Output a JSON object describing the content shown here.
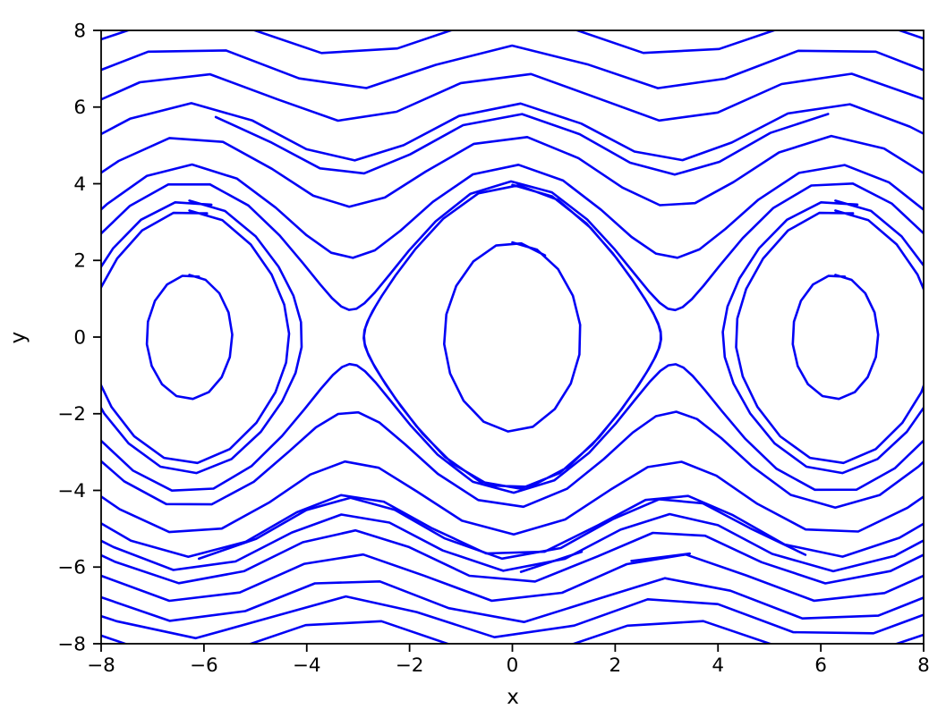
{
  "figure": {
    "xlabel": "x",
    "ylabel": "y",
    "background": "#ffffff"
  },
  "chart_data": {
    "type": "line",
    "subtype": "phase_portrait_pendulum_trajectories",
    "title": "",
    "xlabel": "x",
    "ylabel": "y",
    "xlim": [
      -8,
      8
    ],
    "ylim": [
      -8,
      8
    ],
    "x_ticks": [
      -8,
      -6,
      -4,
      -2,
      0,
      2,
      4,
      6,
      8
    ],
    "y_ticks": [
      -8,
      -6,
      -4,
      -2,
      0,
      2,
      4,
      6,
      8
    ],
    "x_tick_labels": [
      "−8",
      "−6",
      "−4",
      "−2",
      "0",
      "2",
      "4",
      "6",
      "8"
    ],
    "y_tick_labels": [
      "−8",
      "−6",
      "−4",
      "−2",
      "0",
      "2",
      "4",
      "6",
      "8"
    ],
    "grid": false,
    "legend": null,
    "line_color": "#0202f5",
    "axis_color": "#000000",
    "tick_color": "#000000",
    "line_width": 2.6,
    "system": {
      "dxdt": "y",
      "dydt": "-k*sin(x)",
      "k": 4,
      "integrator": "rk4",
      "dt": 0.2
    },
    "trajectories": [
      {
        "x0": 0.0,
        "y0": 2.47,
        "steps": 19
      },
      {
        "x0": -6.283,
        "y0": 1.62,
        "steps": 17
      },
      {
        "x0": 6.283,
        "y0": 1.62,
        "steps": 17
      },
      {
        "x0": -6.283,
        "y0": 3.3,
        "steps": 21
      },
      {
        "x0": -6.283,
        "y0": 3.56,
        "steps": 23
      },
      {
        "x0": 6.283,
        "y0": 3.3,
        "steps": 21
      },
      {
        "x0": 6.283,
        "y0": 3.56,
        "steps": 23
      },
      {
        "x0": 0.0,
        "y0": 3.97,
        "steps": 64
      },
      {
        "x0": -8.5,
        "y0": 1.92,
        "steps": 60
      },
      {
        "x0": -8.5,
        "y0": 2.73,
        "steps": 32
      },
      {
        "x0": -8.5,
        "y0": 3.84,
        "steps": 25
      },
      {
        "x0": -8.5,
        "y0": 4.94,
        "steps": 21
      },
      {
        "x0": -8.5,
        "y0": 5.9,
        "steps": 18
      },
      {
        "x0": -8.5,
        "y0": 6.71,
        "steps": 16
      },
      {
        "x0": -8.5,
        "y0": 7.54,
        "steps": 14
      },
      {
        "x0": 8.5,
        "y0": -1.92,
        "steps": 60
      },
      {
        "x0": 8.5,
        "y0": -2.64,
        "steps": 32
      },
      {
        "x0": 8.5,
        "y0": -3.7,
        "steps": 25
      },
      {
        "x0": 8.5,
        "y0": -4.48,
        "steps": 23
      },
      {
        "x0": 8.5,
        "y0": -4.95,
        "steps": 21
      },
      {
        "x0": 8.5,
        "y0": -5.35,
        "steps": 20
      },
      {
        "x0": 8.5,
        "y0": -5.93,
        "steps": 18
      },
      {
        "x0": 8.5,
        "y0": -6.53,
        "steps": 16
      },
      {
        "x0": 8.5,
        "y0": -7.0,
        "steps": 15
      },
      {
        "x0": 8.5,
        "y0": -7.54,
        "steps": 14
      },
      {
        "x0": -5.77,
        "y0": 5.74,
        "steps": 12
      },
      {
        "x0": 5.7,
        "y0": -5.68,
        "steps": 12
      },
      {
        "x0": 3.45,
        "y0": -5.65,
        "steps": 1
      },
      {
        "x0": 1.35,
        "y0": -5.6,
        "steps": 1
      }
    ]
  }
}
